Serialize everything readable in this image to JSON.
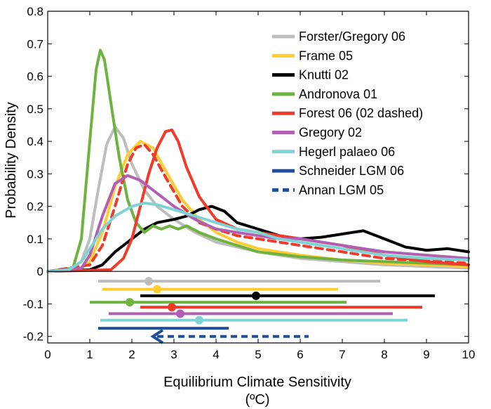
{
  "chart_data": {
    "type": "line",
    "ylabel": "Probability Density",
    "xlabel_line1": "Equilibrium Climate Sensitivity",
    "xlabel_line2": "(ºC)",
    "xlim": [
      0,
      10
    ],
    "ylim": [
      -0.22,
      0.8
    ],
    "xticks": [
      {
        "value": 0,
        "label": "0"
      },
      {
        "value": 1,
        "label": "1"
      },
      {
        "value": 2,
        "label": "2"
      },
      {
        "value": 3,
        "label": "3"
      },
      {
        "value": 4,
        "label": "4"
      },
      {
        "value": 5,
        "label": "5"
      },
      {
        "value": 6,
        "label": "6"
      },
      {
        "value": 7,
        "label": "7"
      },
      {
        "value": 8,
        "label": "8"
      },
      {
        "value": 9,
        "label": "9"
      },
      {
        "value": 10,
        "label": "10"
      }
    ],
    "yticks": [
      {
        "value": -0.2,
        "label": "-0.2"
      },
      {
        "value": -0.1,
        "label": "-0.1"
      },
      {
        "value": 0,
        "label": "0"
      },
      {
        "value": 0.1,
        "label": "0.1"
      },
      {
        "value": 0.2,
        "label": "0.2"
      },
      {
        "value": 0.3,
        "label": "0.3"
      },
      {
        "value": 0.4,
        "label": "0.4"
      },
      {
        "value": 0.5,
        "label": "0.5"
      },
      {
        "value": 0.6,
        "label": "0.6"
      },
      {
        "value": 0.7,
        "label": "0.7"
      },
      {
        "value": 0.8,
        "label": "0.8"
      }
    ],
    "series": [
      {
        "name": "Forster/Gregory 06",
        "color": "#bdbdbd",
        "dash": false,
        "x": [
          0,
          0.5,
          0.8,
          1.0,
          1.2,
          1.4,
          1.6,
          1.8,
          2.0,
          2.3,
          2.6,
          3.0,
          3.5,
          4,
          5,
          6,
          7,
          8,
          10
        ],
        "y": [
          0,
          0.005,
          0.03,
          0.1,
          0.25,
          0.39,
          0.445,
          0.41,
          0.33,
          0.25,
          0.2,
          0.16,
          0.12,
          0.09,
          0.06,
          0.04,
          0.03,
          0.02,
          0.01
        ]
      },
      {
        "name": "Frame 05",
        "color": "#ffcc33",
        "dash": false,
        "x": [
          0,
          0.8,
          1.0,
          1.3,
          1.6,
          1.9,
          2.2,
          2.5,
          2.8,
          3.2,
          3.6,
          4,
          4.5,
          5,
          6,
          7,
          8,
          10
        ],
        "y": [
          0,
          0.01,
          0.03,
          0.12,
          0.26,
          0.36,
          0.4,
          0.38,
          0.31,
          0.22,
          0.16,
          0.12,
          0.09,
          0.07,
          0.05,
          0.035,
          0.025,
          0.015
        ]
      },
      {
        "name": "Knutti 02",
        "color": "#000000",
        "dash": false,
        "x": [
          0,
          1.0,
          1.3,
          1.6,
          2.0,
          2.3,
          2.6,
          3.0,
          3.3,
          3.6,
          3.9,
          4.2,
          4.5,
          5.0,
          5.5,
          6.0,
          6.5,
          7.0,
          7.5,
          8.0,
          8.5,
          9.0,
          9.5,
          10
        ],
        "y": [
          0,
          0.005,
          0.02,
          0.06,
          0.1,
          0.13,
          0.15,
          0.16,
          0.17,
          0.19,
          0.2,
          0.185,
          0.15,
          0.13,
          0.11,
          0.1,
          0.105,
          0.115,
          0.125,
          0.1,
          0.075,
          0.065,
          0.07,
          0.06
        ]
      },
      {
        "name": "Andronova 01",
        "color": "#6db33f",
        "dash": false,
        "x": [
          0,
          0.6,
          0.8,
          1.0,
          1.15,
          1.25,
          1.35,
          1.5,
          1.7,
          1.9,
          2.1,
          2.3,
          2.5,
          2.7,
          2.9,
          3.1,
          3.3,
          3.6,
          4.0,
          4.5,
          5,
          6,
          7,
          8,
          10
        ],
        "y": [
          0,
          0.01,
          0.1,
          0.4,
          0.62,
          0.68,
          0.65,
          0.52,
          0.35,
          0.22,
          0.15,
          0.12,
          0.14,
          0.13,
          0.14,
          0.13,
          0.14,
          0.12,
          0.1,
          0.08,
          0.06,
          0.045,
          0.035,
          0.03,
          0.02
        ]
      },
      {
        "name": "Forest 06 (02 dashed)",
        "color": "#f03a2a",
        "dash": false,
        "x": [
          0,
          1.5,
          1.8,
          2.0,
          2.2,
          2.4,
          2.6,
          2.8,
          2.95,
          3.1,
          3.3,
          3.6,
          4.0,
          4.5,
          5.0,
          5.5,
          6.0,
          7.0,
          8.0,
          9.0,
          10
        ],
        "y": [
          0,
          0.005,
          0.04,
          0.1,
          0.2,
          0.3,
          0.38,
          0.43,
          0.435,
          0.4,
          0.32,
          0.23,
          0.16,
          0.13,
          0.12,
          0.11,
          0.1,
          0.08,
          0.05,
          0.03,
          0.02
        ]
      },
      {
        "name": "Forest 02",
        "color": "#f03a2a",
        "dash": true,
        "legend": false,
        "x": [
          0,
          1.0,
          1.3,
          1.6,
          1.9,
          2.1,
          2.3,
          2.5,
          2.8,
          3.2,
          3.6,
          4.0,
          4.5,
          5.0,
          6.0,
          7.0,
          8.0,
          10
        ],
        "y": [
          0,
          0.02,
          0.08,
          0.2,
          0.33,
          0.38,
          0.39,
          0.36,
          0.29,
          0.2,
          0.15,
          0.13,
          0.11,
          0.1,
          0.08,
          0.06,
          0.04,
          0.025
        ]
      },
      {
        "name": "Gregory 02",
        "color": "#b05fb2",
        "dash": false,
        "x": [
          0,
          0.8,
          1.0,
          1.3,
          1.6,
          1.9,
          2.2,
          2.6,
          3.0,
          3.5,
          4.0,
          4.5,
          5.0,
          5.5,
          6.0,
          6.5,
          7.0,
          8.0,
          9.0,
          10
        ],
        "y": [
          0,
          0.01,
          0.05,
          0.17,
          0.27,
          0.295,
          0.28,
          0.24,
          0.2,
          0.16,
          0.13,
          0.12,
          0.11,
          0.1,
          0.1,
          0.09,
          0.08,
          0.06,
          0.05,
          0.04
        ]
      },
      {
        "name": "Hegerl palaeo 06",
        "color": "#7fd3d3",
        "dash": false,
        "x": [
          0,
          0.5,
          0.8,
          1.0,
          1.3,
          1.6,
          2.0,
          2.3,
          2.6,
          3.0,
          3.5,
          4.0,
          4.5,
          5.0,
          5.5,
          6.0,
          7.0,
          8.0,
          9.0,
          10
        ],
        "y": [
          0,
          0.005,
          0.03,
          0.07,
          0.13,
          0.17,
          0.2,
          0.21,
          0.205,
          0.19,
          0.17,
          0.15,
          0.13,
          0.12,
          0.1,
          0.09,
          0.07,
          0.05,
          0.04,
          0.035
        ]
      }
    ],
    "legend_extra": [
      {
        "name": "Schneider LGM 06",
        "color": "#1f4e9c",
        "dash": false
      },
      {
        "name": "Annan LGM 05",
        "color": "#1f4e9c",
        "dash": true
      }
    ],
    "ranges": [
      {
        "name": "Forster/Gregory 06",
        "color": "#bdbdbd",
        "y": -0.03,
        "lo": 1.2,
        "hi": 7.9,
        "mode": 2.4,
        "dash": false
      },
      {
        "name": "Frame 05",
        "color": "#ffcc33",
        "y": -0.055,
        "lo": 1.3,
        "hi": 6.9,
        "mode": 2.6,
        "dash": false
      },
      {
        "name": "Knutti 02",
        "color": "#000000",
        "y": -0.075,
        "lo": 2.2,
        "hi": 9.2,
        "mode": 4.95,
        "dash": false
      },
      {
        "name": "Andronova 01",
        "color": "#6db33f",
        "y": -0.095,
        "lo": 1.0,
        "hi": 7.1,
        "mode": 1.95,
        "dash": false
      },
      {
        "name": "Forest 06",
        "color": "#f03a2a",
        "y": -0.11,
        "lo": 2.2,
        "hi": 8.9,
        "mode": 2.95,
        "dash": false
      },
      {
        "name": "Gregory 02",
        "color": "#b05fb2",
        "y": -0.13,
        "lo": 1.45,
        "hi": 8.2,
        "mode": 3.15,
        "dash": false
      },
      {
        "name": "Hegerl palaeo 06",
        "color": "#7fd3d3",
        "y": -0.15,
        "lo": 1.25,
        "hi": 8.55,
        "mode": 3.6,
        "dash": false
      },
      {
        "name": "Schneider LGM 06",
        "color": "#1f4e9c",
        "y": -0.175,
        "lo": 1.2,
        "hi": 4.3,
        "mode": null,
        "dash": false
      },
      {
        "name": "Annan LGM 05",
        "color": "#1f4e9c",
        "y": -0.2,
        "lo": 2.6,
        "hi": 6.2,
        "mode": null,
        "dash": true,
        "arrow_to": 2.5
      }
    ]
  }
}
